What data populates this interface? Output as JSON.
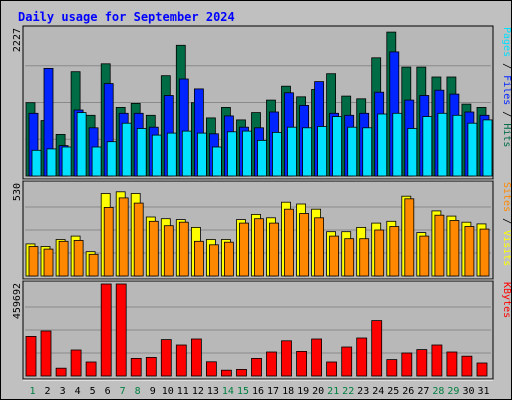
{
  "chart_data": {
    "type": "bar",
    "title": "Daily usage for September 2024",
    "colors": {
      "title": "#0000ff",
      "background": "#c0c0c0",
      "panel": "#b8b8b8",
      "hits": "#006c46",
      "files": "#0024ff",
      "pages": "#00e0ff",
      "visits": "#ffff00",
      "sites": "#ff8800",
      "kbytes": "#ff0000",
      "weekend_label": "#008040",
      "weekday_label": "#000000"
    },
    "categories": [
      "1",
      "2",
      "3",
      "4",
      "5",
      "6",
      "7",
      "8",
      "9",
      "10",
      "11",
      "12",
      "13",
      "14",
      "15",
      "16",
      "17",
      "18",
      "19",
      "20",
      "21",
      "22",
      "23",
      "24",
      "25",
      "26",
      "27",
      "28",
      "29",
      "30",
      "31"
    ],
    "weekend_days": [
      1,
      7,
      8,
      14,
      15,
      21,
      22,
      28,
      29
    ],
    "panels": [
      {
        "name": "hits-files-pages",
        "ymax_label": "2227",
        "ymax": 2227,
        "legend": [
          {
            "text": "Pages",
            "color_key": "pages"
          },
          {
            "text": " / ",
            "color_key": "weekday_label"
          },
          {
            "text": "Files",
            "color_key": "files"
          },
          {
            "text": " / ",
            "color_key": "weekday_label"
          },
          {
            "text": "Hits",
            "color_key": "hits"
          }
        ],
        "series": [
          {
            "name": "Hits",
            "color_key": "hits",
            "values": [
              1110,
              840,
              630,
              1580,
              920,
              1700,
              1040,
              1100,
              920,
              1520,
              1980,
              1110,
              880,
              1040,
              850,
              960,
              1150,
              1360,
              1200,
              1310,
              1550,
              1210,
              1170,
              1790,
              2180,
              1650,
              1650,
              1500,
              1500,
              1090,
              1040
            ]
          },
          {
            "name": "Files",
            "color_key": "files",
            "values": [
              950,
              1630,
              460,
              1000,
              730,
              1400,
              950,
              950,
              740,
              1220,
              1470,
              1320,
              640,
              910,
              740,
              730,
              970,
              1260,
              1070,
              1430,
              950,
              920,
              950,
              1270,
              1880,
              1150,
              1220,
              1300,
              1240,
              970,
              920
            ]
          },
          {
            "name": "Pages",
            "color_key": "pages",
            "values": [
              390,
              410,
              440,
              960,
              440,
              520,
              800,
              720,
              620,
              650,
              680,
              650,
              440,
              670,
              680,
              540,
              660,
              740,
              730,
              750,
              900,
              740,
              730,
              940,
              950,
              720,
              900,
              950,
              920,
              800,
              850
            ]
          }
        ]
      },
      {
        "name": "visits-sites",
        "ymax_label": "530",
        "ymax": 530,
        "legend": [
          {
            "text": "Sites",
            "color_key": "sites"
          },
          {
            "text": " / ",
            "color_key": "weekday_label"
          },
          {
            "text": "Visits",
            "color_key": "visits"
          }
        ],
        "series": [
          {
            "name": "Visits",
            "color_key": "visits",
            "values": [
              185,
              170,
              210,
              230,
              140,
              475,
              485,
              475,
              340,
              330,
              325,
              280,
              210,
              210,
              325,
              355,
              335,
              425,
              415,
              385,
              255,
              255,
              280,
              305,
              315,
              460,
              250,
              375,
              345,
              310,
              300
            ]
          },
          {
            "name": "Sites",
            "color_key": "sites",
            "values": [
              170,
              155,
              200,
              205,
              125,
              395,
              450,
              420,
              315,
              290,
              310,
              200,
              180,
              195,
              305,
              330,
              305,
              385,
              360,
              335,
              230,
              215,
              215,
              265,
              285,
              445,
              230,
              350,
              320,
              285,
              270
            ]
          }
        ]
      },
      {
        "name": "kbytes",
        "ymax_label": "459692",
        "ymax": 459692,
        "legend": [
          {
            "text": "KBytes",
            "color_key": "kbytes"
          }
        ],
        "series": [
          {
            "name": "KBytes",
            "color_key": "kbytes",
            "values": [
              198000,
              225000,
              39000,
              130000,
              70000,
              459692,
              459692,
              88000,
              93000,
              182000,
              155000,
              185000,
              71000,
              29000,
              33000,
              88000,
              120000,
              176000,
              123000,
              185000,
              70000,
              145000,
              190000,
              277000,
              82000,
              115000,
              132000,
              155000,
              120000,
              99000,
              65000
            ]
          }
        ]
      }
    ]
  }
}
